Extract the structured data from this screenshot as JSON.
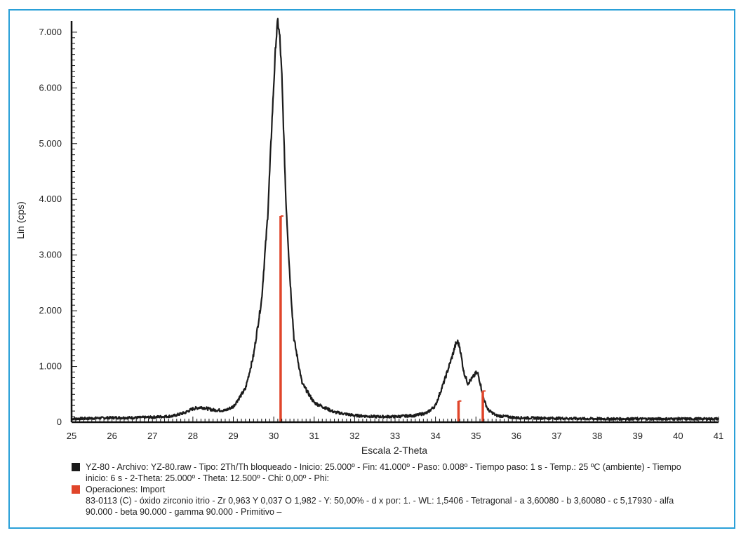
{
  "chart_data": {
    "type": "line",
    "xlabel": "Escala 2-Theta",
    "ylabel": "Lin (cps)",
    "xlim": [
      25,
      41
    ],
    "ylim": [
      0,
      7200
    ],
    "x_ticks": [
      "25",
      "26",
      "27",
      "28",
      "29",
      "30",
      "31",
      "32",
      "33",
      "34",
      "35",
      "36",
      "37",
      "38",
      "39",
      "40",
      "41"
    ],
    "y_ticks": [
      "0",
      "1.000",
      "2.000",
      "3.000",
      "4.000",
      "5.000",
      "6.000",
      "7.000"
    ],
    "series": [
      {
        "name": "YZ-80",
        "color": "#1b1b1b",
        "x": [
          25.0,
          25.5,
          26.0,
          26.5,
          27.0,
          27.5,
          27.8,
          28.0,
          28.2,
          28.5,
          28.8,
          29.0,
          29.3,
          29.5,
          29.7,
          29.85,
          29.95,
          30.05,
          30.1,
          30.15,
          30.2,
          30.3,
          30.4,
          30.5,
          30.7,
          31.0,
          31.5,
          32.0,
          32.5,
          33.0,
          33.5,
          33.8,
          34.0,
          34.2,
          34.4,
          34.5,
          34.55,
          34.6,
          34.7,
          34.8,
          34.9,
          35.0,
          35.05,
          35.1,
          35.2,
          35.3,
          35.5,
          36.0,
          37.0,
          38.0,
          39.0,
          40.0,
          41.0
        ],
        "y": [
          60,
          70,
          80,
          80,
          90,
          110,
          170,
          240,
          270,
          220,
          210,
          280,
          600,
          1200,
          2200,
          3700,
          5300,
          6800,
          7200,
          6900,
          6200,
          4000,
          2600,
          1500,
          700,
          350,
          180,
          120,
          100,
          100,
          120,
          170,
          300,
          700,
          1150,
          1400,
          1440,
          1350,
          900,
          700,
          780,
          880,
          870,
          720,
          400,
          220,
          120,
          80,
          70,
          60,
          60,
          60,
          60
        ]
      },
      {
        "name": "83-0113 (C) - óxido zirconio itrio",
        "color": "#e0452a",
        "type": "stick",
        "x": [
          30.17,
          34.57,
          35.17
        ],
        "y": [
          3700,
          380,
          560
        ]
      }
    ]
  },
  "legend": {
    "entry1_line1": "YZ-80 - Archivo: YZ-80.raw - Tipo: 2Th/Th bloqueado - Inicio: 25.000º - Fin: 41.000º - Paso: 0.008º - Tiempo paso: 1 s - Temp.: 25 ºC (ambiente) - Tiempo",
    "entry1_line2": "inicio: 6 s - 2-Theta: 25.000º - Theta: 12.500º - Chi: 0,00º - Phi:",
    "entry2_line1": "Operaciones: Import",
    "entry2_line2": "83-0113 (C) - óxido zirconio itrio - Zr 0,963 Y 0,037 O 1,982 - Y: 50,00% - d x por: 1. - WL: 1,5406 - Tetragonal - a 3,60080 - b 3,60080 - c 5,17930 - alfa",
    "entry2_line3": "90.000 - beta 90.000 - gamma 90.000 - Primitivo –"
  }
}
